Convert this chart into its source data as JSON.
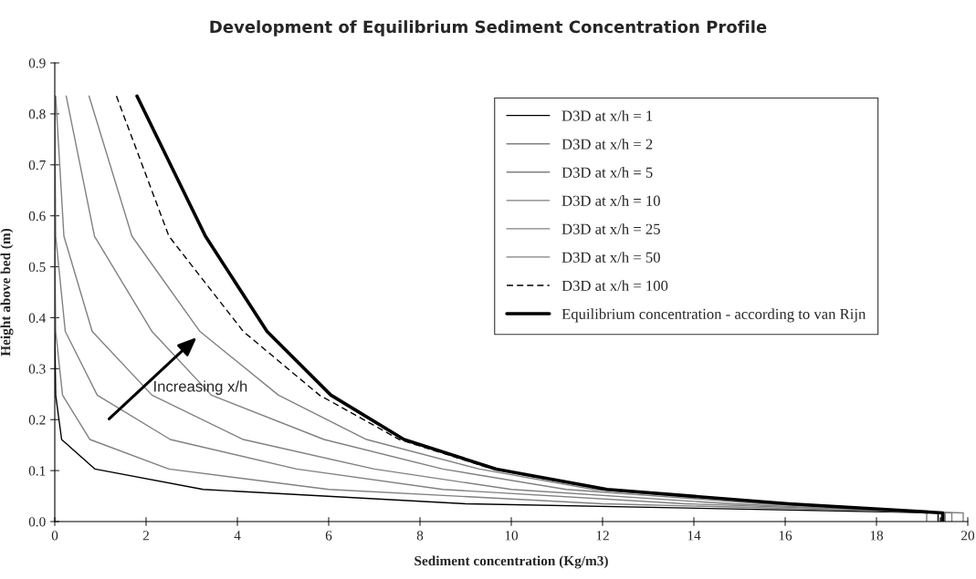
{
  "chart_data": {
    "type": "line",
    "title": "Development of Equilibrium Sediment Concentration Profile",
    "xlabel": "Sediment concentration (Kg/m3)",
    "ylabel": "Height above bed (m)",
    "xlim": [
      0,
      20
    ],
    "xticks": [
      0,
      2,
      4,
      6,
      8,
      10,
      12,
      14,
      16,
      18,
      20
    ],
    "ylim": [
      0,
      0.9
    ],
    "yticks": [
      {
        "value": 0,
        "label": "0.0"
      },
      0.1,
      0.2,
      0.3,
      0.4,
      0.5,
      0.6,
      0.7,
      0.8,
      0.9
    ],
    "grid": false,
    "legend": "top right",
    "marker": "none",
    "annotations": [
      "Increasing x/h"
    ],
    "series": [
      {
        "name": "D3D at x/h = 1",
        "color": "#000000",
        "line_style": "solid",
        "x": [
          0,
          0,
          0,
          0.02,
          0.15,
          0.88,
          3.25,
          9.0,
          19.35,
          19.35
        ],
        "values": [
          0.835,
          0.56,
          0.373,
          0.248,
          0.161,
          0.103,
          0.063,
          0.035,
          0.017,
          0
        ]
      },
      {
        "name": "D3D at x/h = 2",
        "color": "#808080",
        "line_style": "solid",
        "x": [
          0,
          0,
          0.02,
          0.17,
          0.77,
          2.5,
          6.0,
          12.0,
          19.9,
          19.9
        ],
        "values": [
          0.835,
          0.56,
          0.373,
          0.248,
          0.161,
          0.103,
          0.063,
          0.035,
          0.017,
          0
        ]
      },
      {
        "name": "D3D at x/h = 5",
        "color": "#808080",
        "line_style": "solid",
        "x": [
          0,
          0.02,
          0.23,
          0.93,
          2.53,
          5.3,
          8.5,
          13.8,
          19.65,
          19.65
        ],
        "values": [
          0.835,
          0.56,
          0.373,
          0.248,
          0.161,
          0.103,
          0.063,
          0.035,
          0.017,
          0
        ]
      },
      {
        "name": "D3D at x/h = 10",
        "color": "#808080",
        "line_style": "solid",
        "x": [
          0.02,
          0.2,
          0.82,
          2.13,
          4.13,
          7.0,
          10.0,
          14.8,
          19.1,
          19.1
        ],
        "values": [
          0.835,
          0.56,
          0.373,
          0.248,
          0.161,
          0.103,
          0.063,
          0.035,
          0.017,
          0
        ]
      },
      {
        "name": "D3D at x/h = 25",
        "color": "#808080",
        "line_style": "solid",
        "x": [
          0.25,
          0.87,
          2.13,
          3.43,
          5.9,
          8.5,
          11.2,
          15.5,
          19.5,
          19.5
        ],
        "values": [
          0.835,
          0.56,
          0.373,
          0.248,
          0.161,
          0.103,
          0.063,
          0.035,
          0.017,
          0
        ]
      },
      {
        "name": "D3D at x/h = 50",
        "color": "#808080",
        "line_style": "solid",
        "x": [
          0.75,
          1.69,
          3.18,
          4.9,
          6.83,
          9.3,
          11.8,
          15.9,
          19.5,
          19.5
        ],
        "values": [
          0.835,
          0.56,
          0.373,
          0.248,
          0.161,
          0.103,
          0.063,
          0.035,
          0.017,
          0
        ]
      },
      {
        "name": "D3D at x/h = 100",
        "color": "#000000",
        "line_style": "dashed",
        "x": [
          1.35,
          2.5,
          4.13,
          5.8,
          7.55,
          9.6,
          12.0,
          16.0,
          19.4,
          19.4
        ],
        "values": [
          0.835,
          0.56,
          0.373,
          0.248,
          0.161,
          0.103,
          0.063,
          0.035,
          0.017,
          0
        ]
      },
      {
        "name": "Equilibrium concentration - according to van Rijn",
        "color": "#000000",
        "line_style": "solid",
        "x": [
          1.8,
          3.3,
          4.65,
          6.05,
          7.65,
          9.67,
          12.1,
          16.07,
          19.45,
          19.45
        ],
        "values": [
          0.835,
          0.56,
          0.373,
          0.248,
          0.161,
          0.103,
          0.063,
          0.035,
          0.017,
          0
        ]
      }
    ]
  }
}
